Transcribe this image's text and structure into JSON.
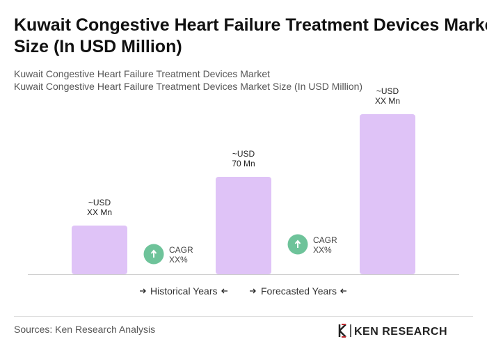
{
  "chart_data": {
    "type": "bar",
    "title": "Kuwait Congestive Heart Failure Treatment Devices Market Size (In USD Million)",
    "subtitle": [
      "Kuwait Congestive Heart Failure Treatment Devices Market",
      "Kuwait Congestive Heart Failure Treatment Devices Market Size (In USD Million)"
    ],
    "categories": [
      null,
      null,
      null
    ],
    "values": [
      35,
      70,
      115
    ],
    "value_labels": [
      [
        "~USD",
        "XX Mn"
      ],
      [
        "~USD",
        "70 Mn"
      ],
      [
        "~USD",
        "XX Mn"
      ]
    ],
    "color": "#dfc3f7",
    "annotations": [
      [
        "CAGR",
        "XX%"
      ],
      [
        "CAGR",
        "XX%"
      ]
    ],
    "legend": [
      "Historical Years",
      "Forecasted Years"
    ],
    "source": "Sources: Ken Research Analysis",
    "logo": "KEN RESEARCH"
  }
}
